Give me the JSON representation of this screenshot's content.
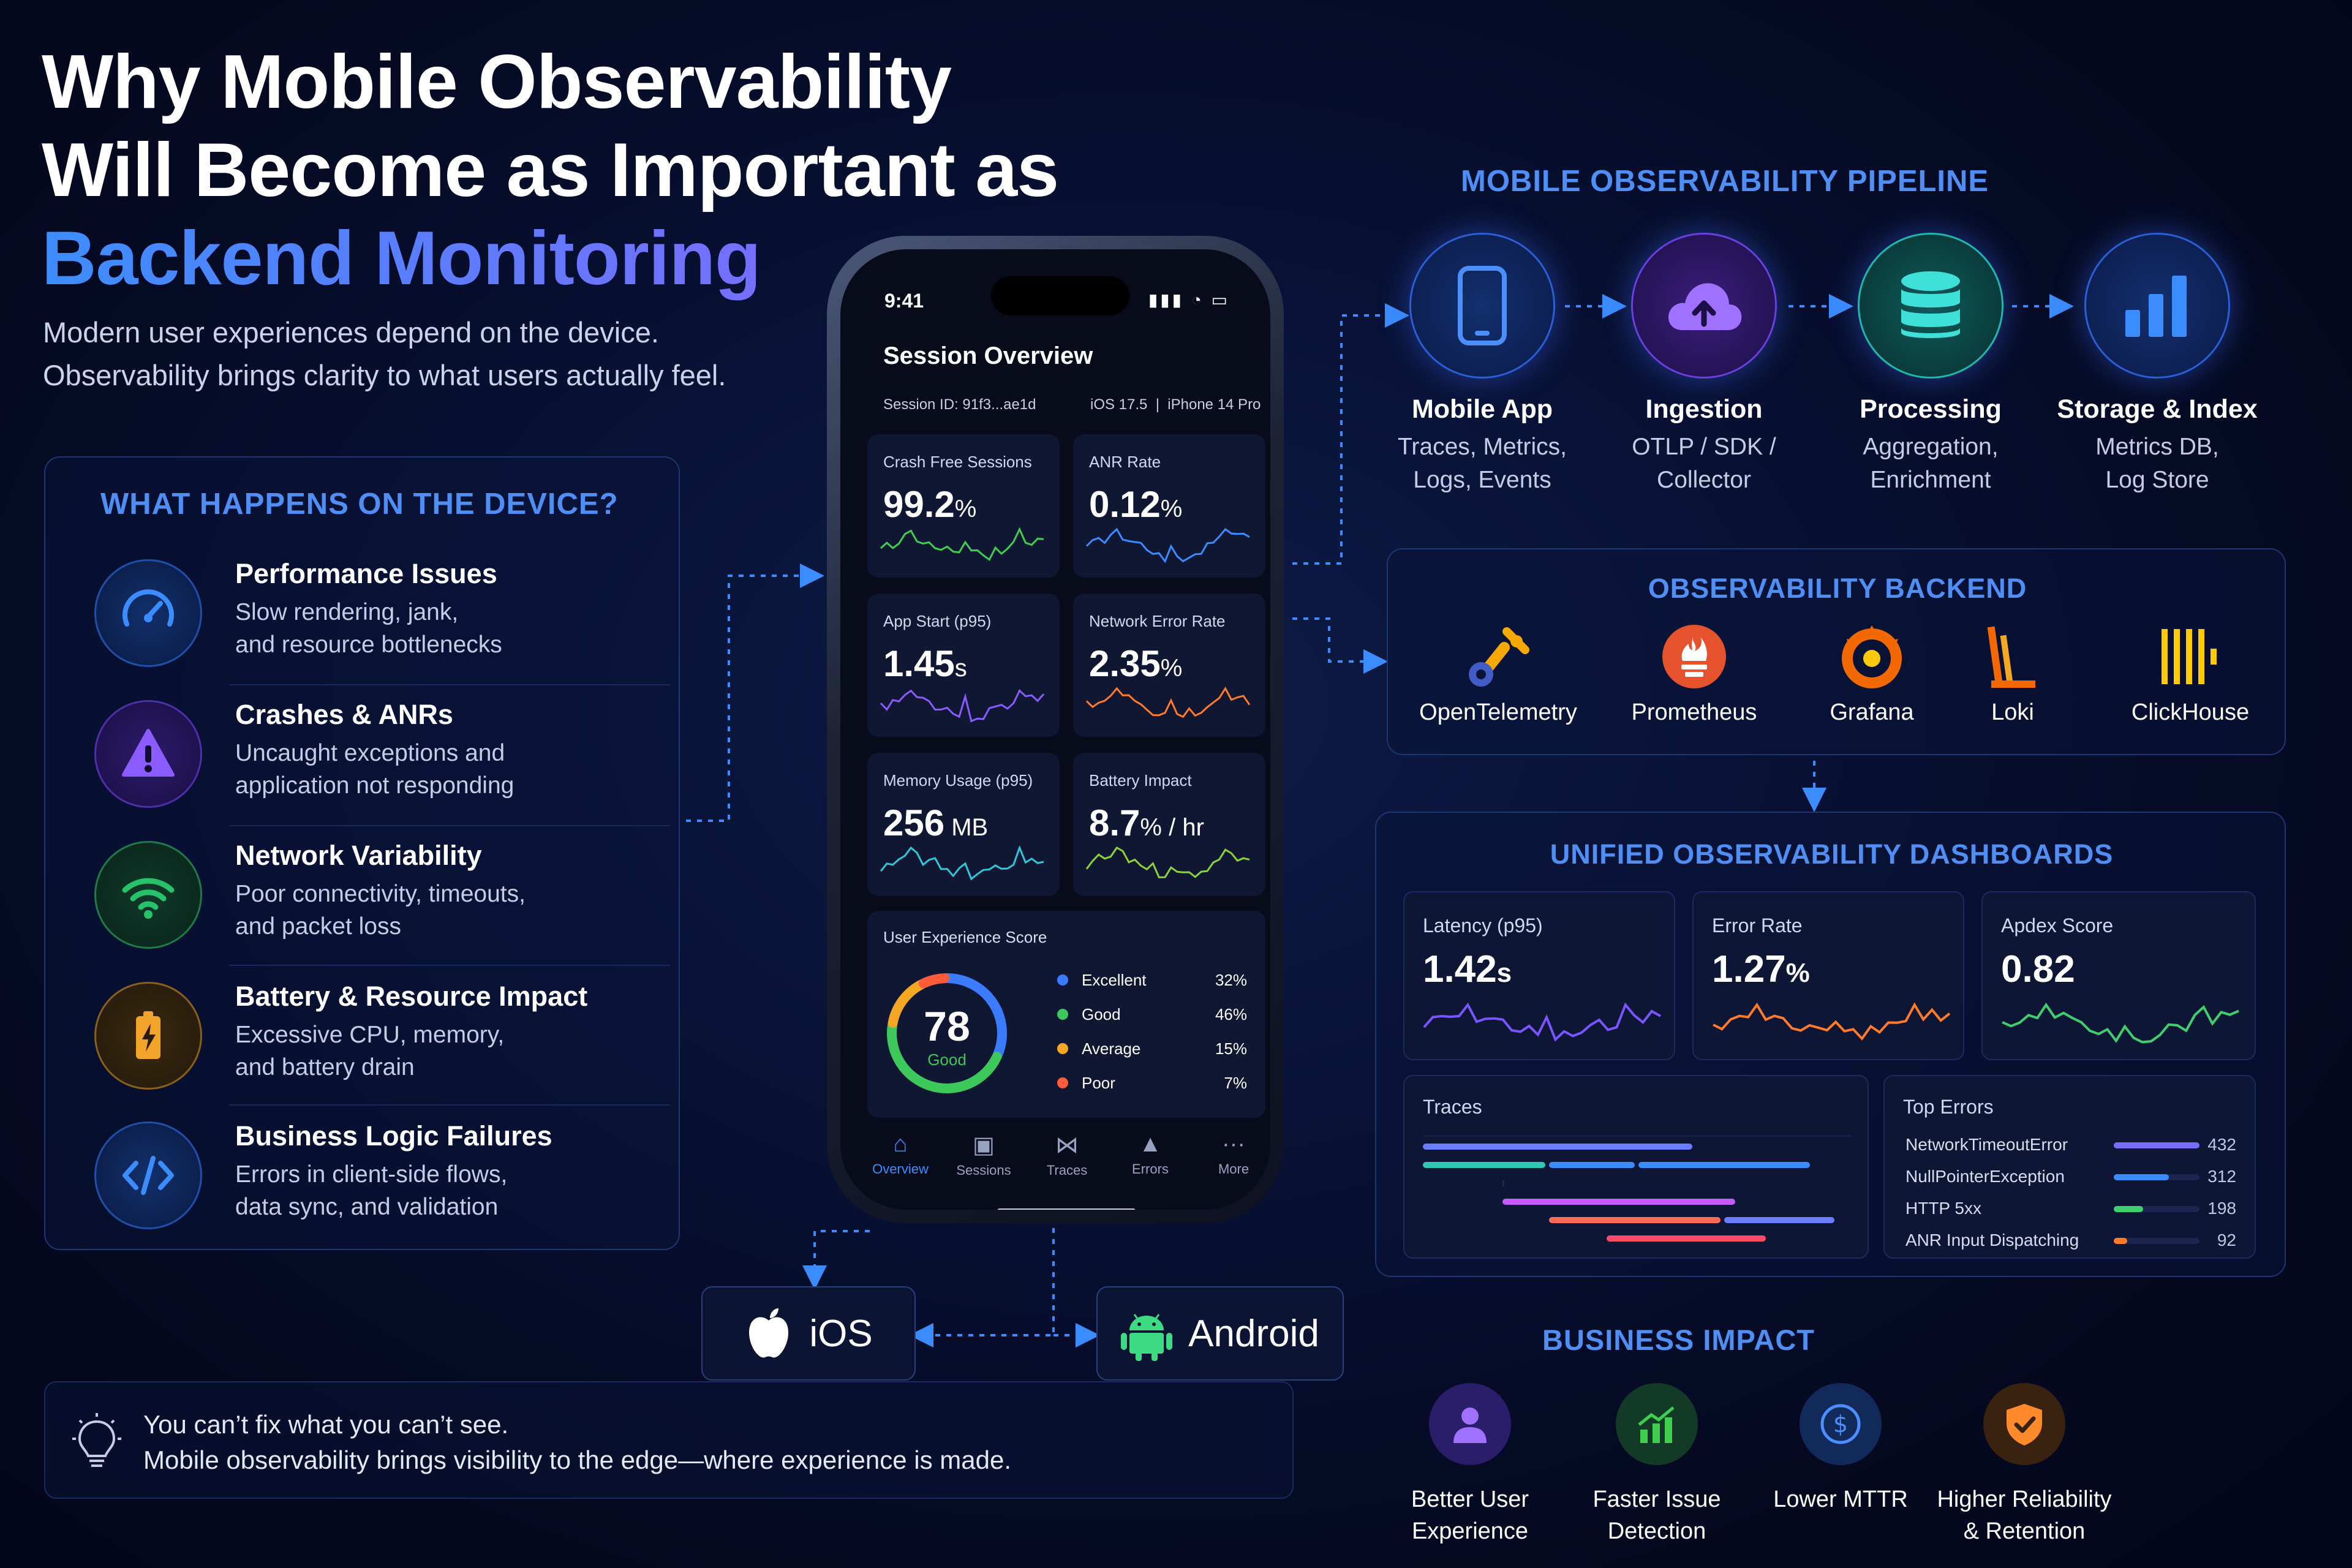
{
  "title": {
    "line1": "Why Mobile Observability",
    "line2": "Will Become as Important as",
    "line3": "Backend Monitoring"
  },
  "subtitle": {
    "line1": "Modern user experiences depend on the device.",
    "line2": "Observability brings clarity to what users actually feel."
  },
  "device_panel": {
    "title": "WHAT HAPPENS ON THE DEVICE?",
    "items": [
      {
        "title": "Performance Issues",
        "desc1": "Slow rendering, jank,",
        "desc2": "and resource bottlenecks",
        "icon": "speedometer-icon",
        "color": "#3a8cff"
      },
      {
        "title": "Crashes & ANRs",
        "desc1": "Uncaught exceptions and",
        "desc2": "application not responding",
        "icon": "warning-icon",
        "color": "#8a5cff"
      },
      {
        "title": "Network Variability",
        "desc1": "Poor connectivity, timeouts,",
        "desc2": "and packet loss",
        "icon": "wifi-icon",
        "color": "#27c26a"
      },
      {
        "title": "Battery & Resource Impact",
        "desc1": "Excessive CPU, memory,",
        "desc2": "and battery drain",
        "icon": "battery-icon",
        "color": "#f2a42a"
      },
      {
        "title": "Business Logic Failures",
        "desc1": "Errors in client-side flows,",
        "desc2": "data sync, and validation",
        "icon": "code-icon",
        "color": "#3a8cff"
      }
    ]
  },
  "phone": {
    "time": "9:41",
    "header": "Session Overview",
    "session_id": "Session ID: 91f3...ae1d",
    "os": "iOS 17.5",
    "device": "iPhone 14 Pro",
    "cards": [
      {
        "label": "Crash Free Sessions",
        "value": "99.2",
        "unit": "%",
        "color": "#3fcf4f"
      },
      {
        "label": "ANR Rate",
        "value": "0.12",
        "unit": "%",
        "color": "#3a8cff"
      },
      {
        "label": "App Start (p95)",
        "value": "1.45",
        "unit": "s",
        "color": "#8a5cff"
      },
      {
        "label": "Network Error Rate",
        "value": "2.35",
        "unit": "%",
        "color": "#ff7a2a"
      },
      {
        "label": "Memory Usage (p95)",
        "value": "256",
        "unit": " MB",
        "color": "#2ec8d8"
      },
      {
        "label": "Battery Impact",
        "value": "8.7",
        "unit": "% / hr",
        "color": "#8ad43a"
      }
    ],
    "ux": {
      "title": "User Experience Score",
      "score": "78",
      "score_label": "Good",
      "segments": [
        {
          "name": "Excellent",
          "pct": "32%",
          "value": 32,
          "color": "#3a7bff"
        },
        {
          "name": "Good",
          "pct": "46%",
          "value": 46,
          "color": "#3cc85a"
        },
        {
          "name": "Average",
          "pct": "15%",
          "value": 15,
          "color": "#f5a623"
        },
        {
          "name": "Poor",
          "pct": "7%",
          "value": 7,
          "color": "#ff5a3a"
        }
      ]
    },
    "tabs": [
      "Overview",
      "Sessions",
      "Traces",
      "Errors",
      "More"
    ]
  },
  "platforms": {
    "ios": "iOS",
    "android": "Android"
  },
  "pipeline": {
    "title": "MOBILE OBSERVABILITY PIPELINE",
    "nodes": [
      {
        "title": "Mobile App",
        "desc1": "Traces, Metrics,",
        "desc2": "Logs, Events",
        "icon": "phone-icon"
      },
      {
        "title": "Ingestion",
        "desc1": "OTLP / SDK /",
        "desc2": "Collector",
        "icon": "cloud-upload-icon"
      },
      {
        "title": "Processing",
        "desc1": "Aggregation,",
        "desc2": "Enrichment",
        "icon": "database-icon"
      },
      {
        "title": "Storage & Index",
        "desc1": "Metrics DB,",
        "desc2": "Log Store",
        "icon": "bar-chart-icon"
      }
    ]
  },
  "backend": {
    "title": "OBSERVABILITY BACKEND",
    "tools": [
      {
        "name": "OpenTelemetry",
        "icon": "opentelemetry-logo"
      },
      {
        "name": "Prometheus",
        "icon": "prometheus-logo"
      },
      {
        "name": "Grafana",
        "icon": "grafana-logo"
      },
      {
        "name": "Loki",
        "icon": "loki-logo"
      },
      {
        "name": "ClickHouse",
        "icon": "clickhouse-logo"
      }
    ]
  },
  "dashboards": {
    "title": "UNIFIED OBSERVABILITY DASHBOARDS",
    "cards": [
      {
        "label": "Latency (p95)",
        "value": "1.42",
        "unit": "s",
        "color": "#7a55ff"
      },
      {
        "label": "Error Rate",
        "value": "1.27",
        "unit": "%",
        "color": "#ff7a2a"
      },
      {
        "label": "Apdex Score",
        "value": "0.82",
        "unit": "",
        "color": "#3fcf6f"
      }
    ],
    "traces_label": "Traces",
    "top_errors": {
      "label": "Top Errors",
      "rows": [
        {
          "name": "NetworkTimeoutError",
          "count": "432",
          "value": 432,
          "color": "#7a6cff"
        },
        {
          "name": "NullPointerException",
          "count": "312",
          "value": 312,
          "color": "#3a8cff"
        },
        {
          "name": "HTTP 5xx",
          "count": "198",
          "value": 198,
          "color": "#3fcf6f"
        },
        {
          "name": "ANR Input Dispatching",
          "count": "92",
          "value": 92,
          "color": "#ff7a2a"
        }
      ]
    }
  },
  "business": {
    "title": "BUSINESS IMPACT",
    "items": [
      {
        "line1": "Better User",
        "line2": "Experience",
        "icon": "user-icon",
        "color": "#7a55ff"
      },
      {
        "line1": "Faster Issue",
        "line2": "Detection",
        "icon": "chart-up-icon",
        "color": "#3fcf4f"
      },
      {
        "line1": "Lower MTTR",
        "line2": "",
        "icon": "dollar-icon",
        "color": "#3a8cff"
      },
      {
        "line1": "Higher Reliability",
        "line2": "& Retention",
        "icon": "shield-check-icon",
        "color": "#ff8a2a"
      }
    ]
  },
  "footer": {
    "line1": "You can’t fix what you can’t see.",
    "line2": "Mobile observability brings visibility to the edge—where experience is made.",
    "icon": "lightbulb-icon"
  }
}
